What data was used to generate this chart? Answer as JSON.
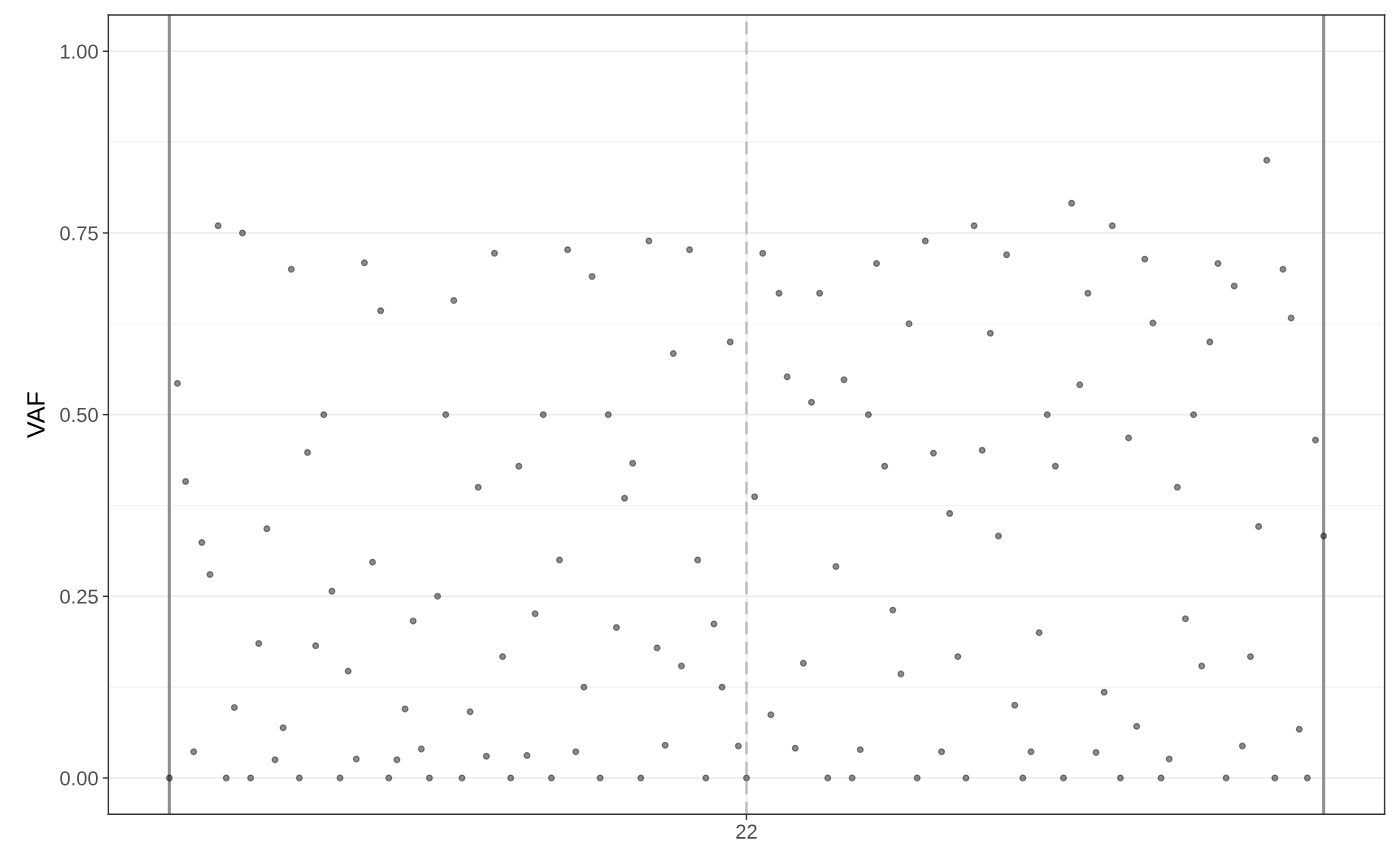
{
  "chart_data": {
    "type": "scatter",
    "ylabel": "VAF",
    "categories": [
      null,
      null,
      null,
      null,
      null,
      null,
      null,
      null,
      null,
      null,
      null,
      null,
      null,
      null,
      null,
      null,
      null,
      null,
      null,
      null,
      null,
      null,
      null,
      null,
      null,
      null,
      null,
      null,
      null,
      null,
      null,
      null,
      null,
      null,
      null,
      null,
      null,
      null,
      null,
      null,
      null,
      null,
      null,
      null,
      null,
      null,
      null,
      null,
      null,
      null,
      null,
      null,
      null,
      null,
      null,
      null,
      null,
      null,
      null,
      null,
      null,
      null,
      null,
      null,
      null,
      null,
      null,
      null,
      null,
      null,
      null,
      null,
      null,
      null,
      null,
      null,
      null,
      null,
      "22",
      null,
      null,
      null,
      null,
      null,
      null,
      null,
      null,
      null,
      null,
      null,
      null,
      null,
      null,
      null,
      null,
      null,
      null,
      null,
      null,
      null,
      null,
      null,
      null,
      null,
      null,
      null,
      null,
      null,
      null,
      null,
      null,
      null,
      null,
      null,
      null,
      null,
      null,
      null,
      null,
      null,
      null,
      null,
      null,
      null,
      null,
      null,
      null,
      null,
      null,
      null,
      null,
      null,
      null,
      null,
      null,
      null,
      null,
      null,
      null,
      null,
      null,
      null,
      null,
      null,
      null,
      null,
      null,
      null,
      null,
      null,
      null,
      null,
      null,
      null,
      null,
      null,
      null
    ],
    "ylim": [
      -0.05,
      1.05
    ],
    "yticks": [
      {
        "value": 0,
        "label": "0.00"
      },
      {
        "value": 0.25,
        "label": "0.25"
      },
      {
        "value": 0.5,
        "label": "0.50"
      },
      {
        "value": 0.75,
        "label": "0.75"
      },
      {
        "value": 1,
        "label": "1.00"
      }
    ],
    "grid": true,
    "marker": "circle",
    "ref_lines": [
      {
        "axis": "x",
        "value": "22",
        "color": "#bdbdbd",
        "line_style": "dashed"
      }
    ],
    "series": [
      {
        "color": "#000000",
        "values": [
          null,
          null,
          null,
          null,
          null,
          null,
          null,
          0,
          0.543,
          0.408,
          0.036,
          0.324,
          0.28,
          0.76,
          0,
          0.097,
          0.75,
          0,
          0.185,
          0.343,
          0.025,
          0.069,
          0.7,
          0,
          0.448,
          0.182,
          0.5,
          0.257,
          0,
          0.147,
          0.026,
          0.709,
          0.297,
          0.643,
          0,
          0.025,
          0.095,
          0.216,
          0.04,
          0,
          0.25,
          0.5,
          0.657,
          0,
          0.091,
          0.4,
          0.03,
          0.722,
          0.167,
          0,
          0.429,
          0.031,
          0.226,
          0.5,
          0,
          0.3,
          0.727,
          0.036,
          0.125,
          0.69,
          0,
          0.5,
          0.207,
          0.385,
          0.433,
          0,
          0.739,
          0.179,
          0.045,
          0.584,
          0.154,
          0.727,
          0.3,
          0,
          0.212,
          0.125,
          0.6,
          0.044,
          0,
          0.387,
          0.722,
          0.087,
          0.667,
          0.552,
          0.041,
          0.158,
          0.517,
          0.667,
          0,
          0.291,
          0.548,
          0,
          0.039,
          0.5,
          0.708,
          0.429,
          0.231,
          0.143,
          0.625,
          0,
          0.739,
          0.447,
          0.036,
          0.364,
          0.167,
          0,
          0.76,
          0.451,
          0.612,
          0.333,
          0.72,
          0.1,
          0,
          0.036,
          0.2,
          0.5,
          0.429,
          0,
          0.791,
          0.541,
          0.667,
          0.035,
          0.118,
          0.76,
          0,
          0.468,
          0.071,
          0.714,
          0.626,
          0,
          0.026,
          0.4,
          0.219,
          0.5,
          0.154,
          0.6,
          0.708,
          0,
          0.677,
          0.044,
          0.167,
          0.346,
          0.85,
          0,
          0.7,
          0.633,
          0.067,
          0,
          0.465,
          0.333,
          null,
          null,
          null,
          null,
          null,
          null,
          null
        ]
      }
    ]
  }
}
